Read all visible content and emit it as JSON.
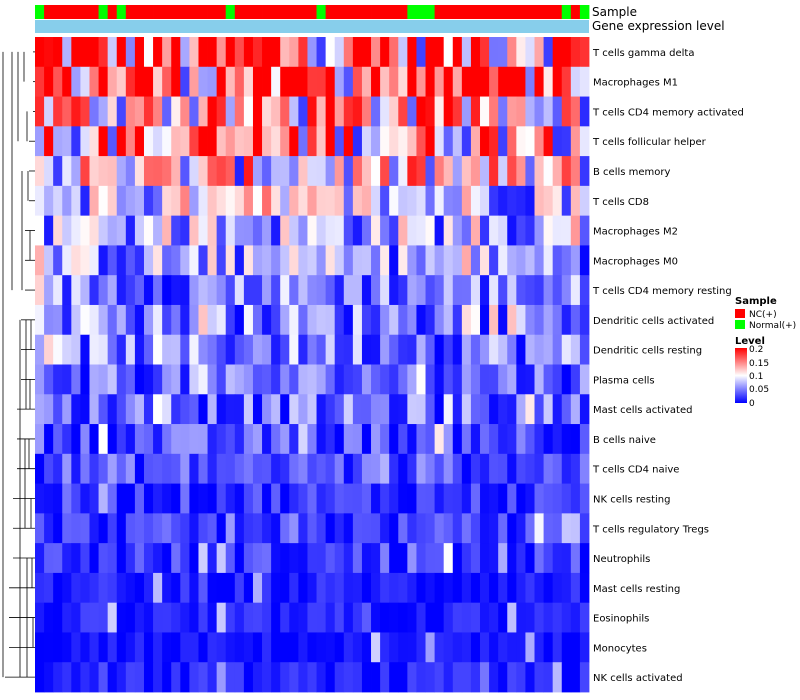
{
  "chart_data": {
    "type": "heatmap",
    "title": "",
    "annotation_tracks": [
      "Sample",
      "Gene expression level"
    ],
    "sample_groups": [
      "Normal(+)",
      "NC(+)",
      "NC(+)",
      "NC(+)",
      "NC(+)",
      "NC(+)",
      "NC(+)",
      "Normal(+)",
      "NC(+)",
      "Normal(+)",
      "NC(+)",
      "NC(+)",
      "NC(+)",
      "NC(+)",
      "NC(+)",
      "NC(+)",
      "NC(+)",
      "NC(+)",
      "NC(+)",
      "NC(+)",
      "NC(+)",
      "Normal(+)",
      "NC(+)",
      "NC(+)",
      "NC(+)",
      "NC(+)",
      "NC(+)",
      "NC(+)",
      "NC(+)",
      "NC(+)",
      "NC(+)",
      "Normal(+)",
      "NC(+)",
      "NC(+)",
      "NC(+)",
      "NC(+)",
      "NC(+)",
      "NC(+)",
      "NC(+)",
      "NC(+)",
      "NC(+)",
      "Normal(+)",
      "Normal(+)",
      "Normal(+)",
      "NC(+)",
      "NC(+)",
      "NC(+)",
      "NC(+)",
      "NC(+)",
      "NC(+)",
      "NC(+)",
      "NC(+)",
      "NC(+)",
      "NC(+)",
      "NC(+)",
      "NC(+)",
      "NC(+)",
      "NC(+)",
      "Normal(+)",
      "NC(+)",
      "Normal(+)"
    ],
    "rows": [
      "T cells gamma delta",
      "Macrophages M1",
      "T cells CD4 memory activated",
      "T cells follicular helper",
      "B cells memory",
      "T cells CD8",
      "Macrophages M2",
      "Macrophages M0",
      "T cells CD4 memory resting",
      "Dendritic cells activated",
      "Dendritic cells resting",
      "Plasma cells",
      "Mast cells activated",
      "B cells naive",
      "T cells CD4 naive",
      "NK cells resting",
      "T cells regulatory  Tregs",
      "Neutrophils",
      "Mast cells resting",
      "Eosinophils",
      "Monocytes",
      "NK cells activated"
    ],
    "row_mean_levels": [
      0.16,
      0.17,
      0.12,
      0.13,
      0.1,
      0.08,
      0.07,
      0.06,
      0.05,
      0.05,
      0.05,
      0.04,
      0.04,
      0.03,
      0.03,
      0.02,
      0.02,
      0.02,
      0.01,
      0.01,
      0.005,
      0.01
    ],
    "legend": {
      "sample_title": "Sample",
      "sample_entries": [
        {
          "label": "NC(+)",
          "color": "#ff0000"
        },
        {
          "label": "Normal(+)",
          "color": "#00ff00"
        }
      ],
      "level_title": "Level",
      "level_ticks": [
        "0.2",
        "0.15",
        "0.1",
        "0.05",
        "0"
      ],
      "level_range": [
        0,
        0.2
      ]
    },
    "colors": {
      "low": "#0000ff",
      "mid": "#ffffff",
      "high": "#ff0000",
      "level_bar": "#87ceeb"
    }
  }
}
